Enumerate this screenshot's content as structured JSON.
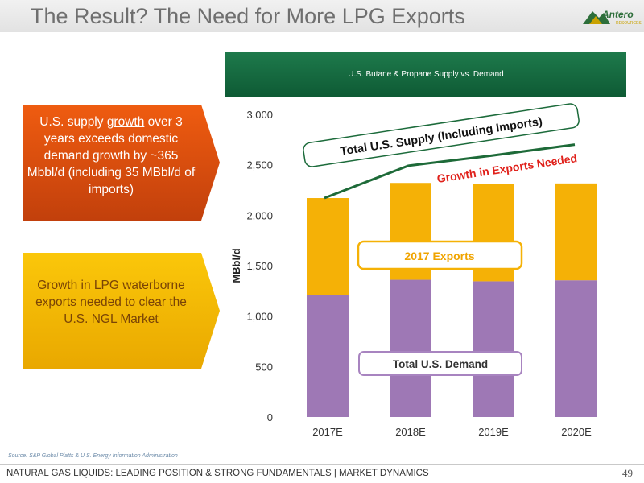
{
  "slide": {
    "title": "The Result? The Need for More LPG Exports",
    "logo_text": "Antero",
    "logo_subtext": "RESOURCES",
    "source": "Source: S&P Global Platts & U.S. Energy Information Administration",
    "footer": "NATURAL GAS LIQUIDS: LEADING POSITION & STRONG FUNDAMENTALS | MARKET DYNAMICS",
    "page_number": "49"
  },
  "callouts": {
    "supply_growth": {
      "pre": "U.S. supply ",
      "underlined": "growth",
      "post": " over 3 years exceeds domestic demand growth by ~365 Mbbl/d (including 35 MBbl/d  of imports)"
    },
    "exports_growth": {
      "text": "Growth in LPG waterborne exports needed to clear the U.S. NGL Market"
    }
  },
  "colors": {
    "demand": "#9e78b5",
    "exports": "#f5b106",
    "orange_callout": "#e2500f",
    "gold_callout": "#f7b902",
    "header_green": "#0f5e37",
    "supply_border": "#1c6b3b",
    "growth_line": "#1d6a38",
    "growth_label": "#e0201a"
  },
  "chart_data": {
    "type": "bar",
    "stacked": true,
    "title": "U.S. Butane & Propane Supply vs. Demand",
    "ylabel": "MBbl/d",
    "xlabel": "",
    "ylim": [
      0,
      3000
    ],
    "yticks": [
      "0",
      "500",
      "1,000",
      "1,500",
      "2,000",
      "2,500",
      "3,000"
    ],
    "ytick_values": [
      0,
      500,
      1000,
      1500,
      2000,
      2500,
      3000
    ],
    "categories": [
      "2017E",
      "2018E",
      "2019E",
      "2020E"
    ],
    "series": [
      {
        "values": [
          1210,
          1360,
          1345,
          1355
        ]
      },
      {
        "values": [
          960,
          960,
          965,
          960
        ]
      }
    ],
    "growth_line": [
      2170,
      2490,
      2590,
      2700
    ],
    "annotations": {
      "supply": "Total U.S. Supply (Including Imports)",
      "growth": "Growth in Exports Needed",
      "exports": "2017 Exports",
      "demand": "Total U.S. Demand"
    },
    "grid": false
  }
}
